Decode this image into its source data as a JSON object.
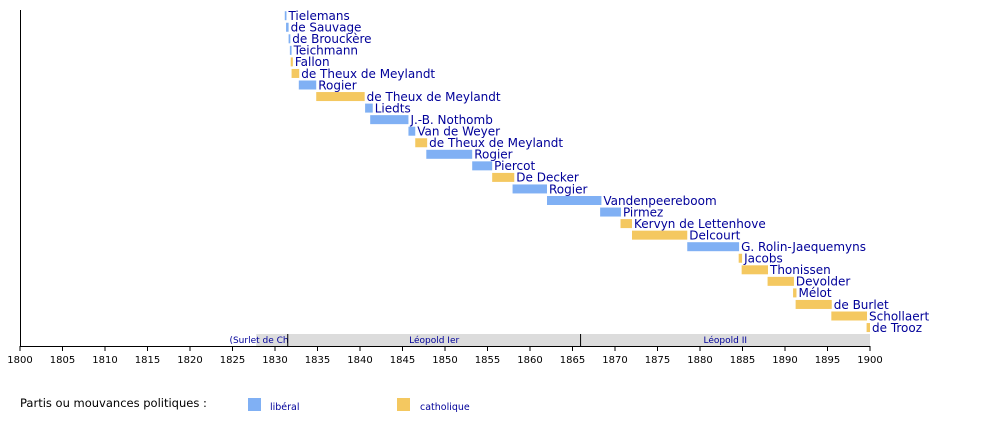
{
  "chart_data": {
    "type": "timeline",
    "x_range": [
      1800,
      1900
    ],
    "ticks": [
      1800,
      1805,
      1810,
      1815,
      1820,
      1825,
      1830,
      1835,
      1840,
      1845,
      1850,
      1855,
      1860,
      1865,
      1870,
      1875,
      1880,
      1885,
      1890,
      1895,
      1900
    ],
    "governments": [
      {
        "name": "Tielemans",
        "start": 1831.15,
        "end": 1831.35,
        "party": "liberal"
      },
      {
        "name": "de Sauvage",
        "start": 1831.3,
        "end": 1831.6,
        "party": "liberal"
      },
      {
        "name": "de Brouckère",
        "start": 1831.6,
        "end": 1831.8,
        "party": "liberal"
      },
      {
        "name": "Teichmann",
        "start": 1831.75,
        "end": 1831.95,
        "party": "liberal"
      },
      {
        "name": "Fallon",
        "start": 1831.85,
        "end": 1832.1,
        "party": "catholic"
      },
      {
        "name": "de Theux de Meylandt",
        "start": 1831.95,
        "end": 1832.85,
        "party": "catholic"
      },
      {
        "name": "Rogier",
        "start": 1832.8,
        "end": 1834.85,
        "party": "liberal"
      },
      {
        "name": "de Theux de Meylandt",
        "start": 1834.85,
        "end": 1840.55,
        "party": "catholic"
      },
      {
        "name": "Liedts",
        "start": 1840.6,
        "end": 1841.5,
        "party": "liberal"
      },
      {
        "name": "J.-B. Nothomb",
        "start": 1841.2,
        "end": 1845.7,
        "party": "liberal"
      },
      {
        "name": "Van de Weyer",
        "start": 1845.7,
        "end": 1846.5,
        "party": "liberal"
      },
      {
        "name": "de Theux de Meylandt",
        "start": 1846.5,
        "end": 1847.9,
        "party": "catholic"
      },
      {
        "name": "Rogier",
        "start": 1847.8,
        "end": 1853.2,
        "party": "liberal"
      },
      {
        "name": "Piercot",
        "start": 1853.2,
        "end": 1855.55,
        "party": "liberal"
      },
      {
        "name": "De Decker",
        "start": 1855.55,
        "end": 1858.15,
        "party": "catholic"
      },
      {
        "name": "Rogier",
        "start": 1857.95,
        "end": 1862.0,
        "party": "liberal"
      },
      {
        "name": "Vandenpeereboom",
        "start": 1862.0,
        "end": 1868.4,
        "party": "liberal"
      },
      {
        "name": "Pirmez",
        "start": 1868.25,
        "end": 1870.7,
        "party": "liberal"
      },
      {
        "name": "Kervyn de Lettenhove",
        "start": 1870.65,
        "end": 1872.0,
        "party": "catholic"
      },
      {
        "name": "Delcourt",
        "start": 1872.0,
        "end": 1878.5,
        "party": "catholic"
      },
      {
        "name": "G. Rolin-Jaequemyns",
        "start": 1878.5,
        "end": 1884.6,
        "party": "liberal"
      },
      {
        "name": "Jacobs",
        "start": 1884.55,
        "end": 1884.95,
        "party": "catholic"
      },
      {
        "name": "Thonissen",
        "start": 1884.9,
        "end": 1888.0,
        "party": "catholic"
      },
      {
        "name": "Devolder",
        "start": 1887.95,
        "end": 1891.05,
        "party": "catholic"
      },
      {
        "name": "Mélot",
        "start": 1890.95,
        "end": 1891.35,
        "party": "catholic"
      },
      {
        "name": "de Burlet",
        "start": 1891.25,
        "end": 1895.5,
        "party": "catholic"
      },
      {
        "name": "Schollaert",
        "start": 1895.45,
        "end": 1899.65,
        "party": "catholic"
      },
      {
        "name": "de Trooz",
        "start": 1899.6,
        "end": 1900.0,
        "party": "catholic"
      }
    ],
    "reigns": [
      {
        "name": "(Surlet de Chokier)",
        "start": 1827.8,
        "end": 1831.5
      },
      {
        "name": "Léopold Ier",
        "start": 1831.5,
        "end": 1865.95
      },
      {
        "name": "Léopold II",
        "start": 1865.95,
        "end": 1900.0
      }
    ],
    "legend": {
      "title": "Partis ou mouvances politiques :",
      "items": [
        {
          "key": "liberal",
          "label": "libéral"
        },
        {
          "key": "catholic",
          "label": "catholique"
        }
      ]
    },
    "colors": {
      "liberal": "#80b0f4",
      "catholic": "#f4c860",
      "label": "#000099",
      "reign_band": "#dcdcdc"
    }
  }
}
